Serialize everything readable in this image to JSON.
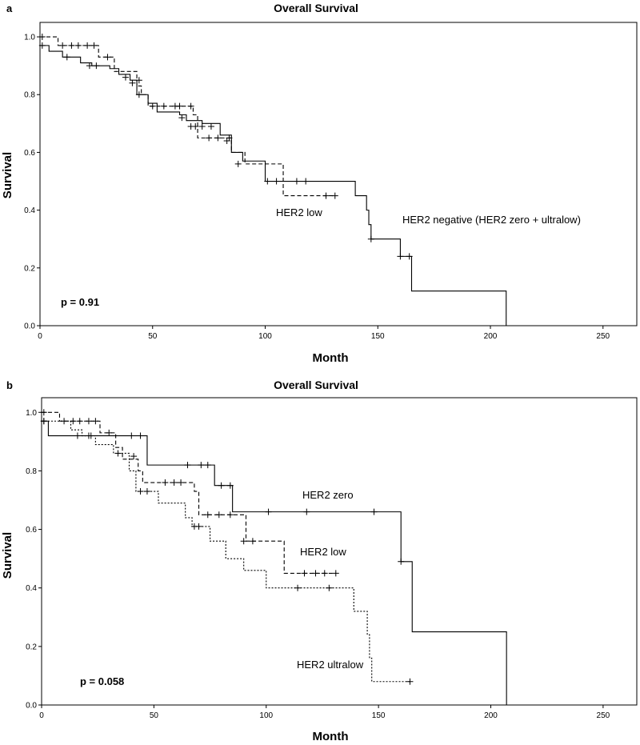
{
  "chart_data": [
    {
      "type": "line",
      "panel": "a",
      "title": "Overall Survival",
      "xlabel": "Month",
      "ylabel": "Survival",
      "xlim": [
        0,
        265
      ],
      "ylim": [
        0,
        1.05
      ],
      "xticks": [
        0,
        50,
        100,
        150,
        200,
        250
      ],
      "yticks": [
        0.0,
        0.2,
        0.4,
        0.6,
        0.8,
        1.0
      ],
      "x_tick_labels": [
        "0",
        "50",
        "100",
        "150",
        "200",
        "250"
      ],
      "y_tick_labels": [
        "0.0",
        "0.2",
        "0.4",
        "0.6",
        "0.8",
        "1.0"
      ],
      "pvalue": "p = 0.91",
      "series": [
        {
          "name": "HER2 low",
          "style": "dashed",
          "label": "HER2 low",
          "steps": [
            [
              0,
              1.0
            ],
            [
              8,
              0.97
            ],
            [
              26,
              0.93
            ],
            [
              33,
              0.88
            ],
            [
              43,
              0.83
            ],
            [
              45,
              0.8
            ],
            [
              48,
              0.76
            ],
            [
              68,
              0.73
            ],
            [
              70,
              0.65
            ],
            [
              85,
              0.6
            ],
            [
              91,
              0.56
            ],
            [
              108,
              0.45
            ],
            [
              131,
              0.45
            ]
          ],
          "censors": [
            [
              1,
              1.0
            ],
            [
              10,
              0.97
            ],
            [
              14,
              0.97
            ],
            [
              17,
              0.97
            ],
            [
              21,
              0.97
            ],
            [
              24,
              0.97
            ],
            [
              30,
              0.93
            ],
            [
              41,
              0.84
            ],
            [
              44,
              0.85
            ],
            [
              55,
              0.76
            ],
            [
              60,
              0.76
            ],
            [
              62,
              0.76
            ],
            [
              67,
              0.76
            ],
            [
              75,
              0.65
            ],
            [
              84,
              0.65
            ],
            [
              88,
              0.56
            ],
            [
              101,
              0.5
            ],
            [
              114,
              0.5
            ],
            [
              118,
              0.5
            ],
            [
              127,
              0.45
            ],
            [
              131,
              0.45
            ]
          ]
        },
        {
          "name": "HER2 negative (HER2 zero + ultralow)",
          "style": "solid",
          "label": "HER2 negative (HER2 zero + ultralow)",
          "steps": [
            [
              0,
              0.97
            ],
            [
              4,
              0.95
            ],
            [
              10,
              0.93
            ],
            [
              18,
              0.91
            ],
            [
              23,
              0.9
            ],
            [
              31,
              0.89
            ],
            [
              35,
              0.87
            ],
            [
              40,
              0.85
            ],
            [
              43,
              0.8
            ],
            [
              48,
              0.77
            ],
            [
              52,
              0.74
            ],
            [
              62,
              0.73
            ],
            [
              65,
              0.71
            ],
            [
              72,
              0.7
            ],
            [
              80,
              0.66
            ],
            [
              85,
              0.6
            ],
            [
              90,
              0.57
            ],
            [
              100,
              0.5
            ],
            [
              140,
              0.45
            ],
            [
              145,
              0.4
            ],
            [
              146,
              0.35
            ],
            [
              147,
              0.3
            ],
            [
              160,
              0.24
            ],
            [
              165,
              0.12
            ],
            [
              207,
              0.0
            ]
          ],
          "censors": [
            [
              1,
              0.97
            ],
            [
              12,
              0.93
            ],
            [
              22,
              0.9
            ],
            [
              25,
              0.9
            ],
            [
              38,
              0.86
            ],
            [
              44,
              0.8
            ],
            [
              50,
              0.76
            ],
            [
              63,
              0.72
            ],
            [
              67,
              0.69
            ],
            [
              69,
              0.69
            ],
            [
              72,
              0.69
            ],
            [
              76,
              0.69
            ],
            [
              79,
              0.65
            ],
            [
              83,
              0.64
            ],
            [
              105,
              0.5
            ],
            [
              147,
              0.3
            ],
            [
              160,
              0.24
            ],
            [
              164,
              0.24
            ]
          ]
        }
      ]
    },
    {
      "type": "line",
      "panel": "b",
      "title": "Overall Survival",
      "xlabel": "Month",
      "ylabel": "Survival",
      "xlim": [
        0,
        265
      ],
      "ylim": [
        0,
        1.05
      ],
      "xticks": [
        0,
        50,
        100,
        150,
        200,
        250
      ],
      "yticks": [
        0.0,
        0.2,
        0.4,
        0.6,
        0.8,
        1.0
      ],
      "x_tick_labels": [
        "0",
        "50",
        "100",
        "150",
        "200",
        "250"
      ],
      "y_tick_labels": [
        "0.0",
        "0.2",
        "0.4",
        "0.6",
        "0.8",
        "1.0"
      ],
      "pvalue": "p = 0.058",
      "series": [
        {
          "name": "HER2 zero",
          "style": "solid",
          "label": "HER2 zero",
          "steps": [
            [
              0,
              0.97
            ],
            [
              3,
              0.92
            ],
            [
              47,
              0.82
            ],
            [
              77,
              0.75
            ],
            [
              85,
              0.66
            ],
            [
              160,
              0.49
            ],
            [
              165,
              0.25
            ],
            [
              207,
              0.0
            ]
          ],
          "censors": [
            [
              1,
              0.97
            ],
            [
              16,
              0.92
            ],
            [
              21,
              0.92
            ],
            [
              40,
              0.92
            ],
            [
              44,
              0.92
            ],
            [
              65,
              0.82
            ],
            [
              71,
              0.82
            ],
            [
              74,
              0.82
            ],
            [
              80,
              0.75
            ],
            [
              84,
              0.75
            ],
            [
              101,
              0.66
            ],
            [
              118,
              0.66
            ],
            [
              148,
              0.66
            ],
            [
              160,
              0.49
            ]
          ]
        },
        {
          "name": "HER2 low",
          "style": "dashed",
          "label": "HER2 low",
          "steps": [
            [
              0,
              1.0
            ],
            [
              8,
              0.97
            ],
            [
              26,
              0.93
            ],
            [
              33,
              0.88
            ],
            [
              36,
              0.84
            ],
            [
              43,
              0.8
            ],
            [
              45,
              0.76
            ],
            [
              68,
              0.73
            ],
            [
              70,
              0.65
            ],
            [
              91,
              0.56
            ],
            [
              108,
              0.45
            ],
            [
              131,
              0.45
            ]
          ],
          "censors": [
            [
              1,
              1.0
            ],
            [
              10,
              0.97
            ],
            [
              14,
              0.97
            ],
            [
              17,
              0.97
            ],
            [
              21,
              0.97
            ],
            [
              24,
              0.97
            ],
            [
              30,
              0.93
            ],
            [
              41,
              0.85
            ],
            [
              55,
              0.76
            ],
            [
              59,
              0.76
            ],
            [
              62,
              0.76
            ],
            [
              74,
              0.65
            ],
            [
              79,
              0.65
            ],
            [
              84,
              0.65
            ],
            [
              90,
              0.56
            ],
            [
              94,
              0.56
            ],
            [
              117,
              0.45
            ],
            [
              122,
              0.45
            ],
            [
              126,
              0.45
            ],
            [
              131,
              0.45
            ]
          ]
        },
        {
          "name": "HER2 ultralow",
          "style": "dotted",
          "label": "HER2 ultralow",
          "steps": [
            [
              0,
              0.97
            ],
            [
              13,
              0.94
            ],
            [
              18,
              0.92
            ],
            [
              24,
              0.89
            ],
            [
              32,
              0.86
            ],
            [
              39,
              0.8
            ],
            [
              42,
              0.73
            ],
            [
              52,
              0.69
            ],
            [
              64,
              0.64
            ],
            [
              67,
              0.61
            ],
            [
              75,
              0.56
            ],
            [
              82,
              0.5
            ],
            [
              90,
              0.46
            ],
            [
              100,
              0.4
            ],
            [
              139,
              0.32
            ],
            [
              145,
              0.24
            ],
            [
              146,
              0.16
            ],
            [
              147,
              0.08
            ],
            [
              164,
              0.08
            ]
          ],
          "censors": [
            [
              1,
              0.97
            ],
            [
              22,
              0.92
            ],
            [
              34,
              0.86
            ],
            [
              44,
              0.73
            ],
            [
              47,
              0.73
            ],
            [
              68,
              0.61
            ],
            [
              70,
              0.61
            ],
            [
              114,
              0.4
            ],
            [
              128,
              0.4
            ],
            [
              164,
              0.08
            ]
          ]
        }
      ]
    }
  ]
}
